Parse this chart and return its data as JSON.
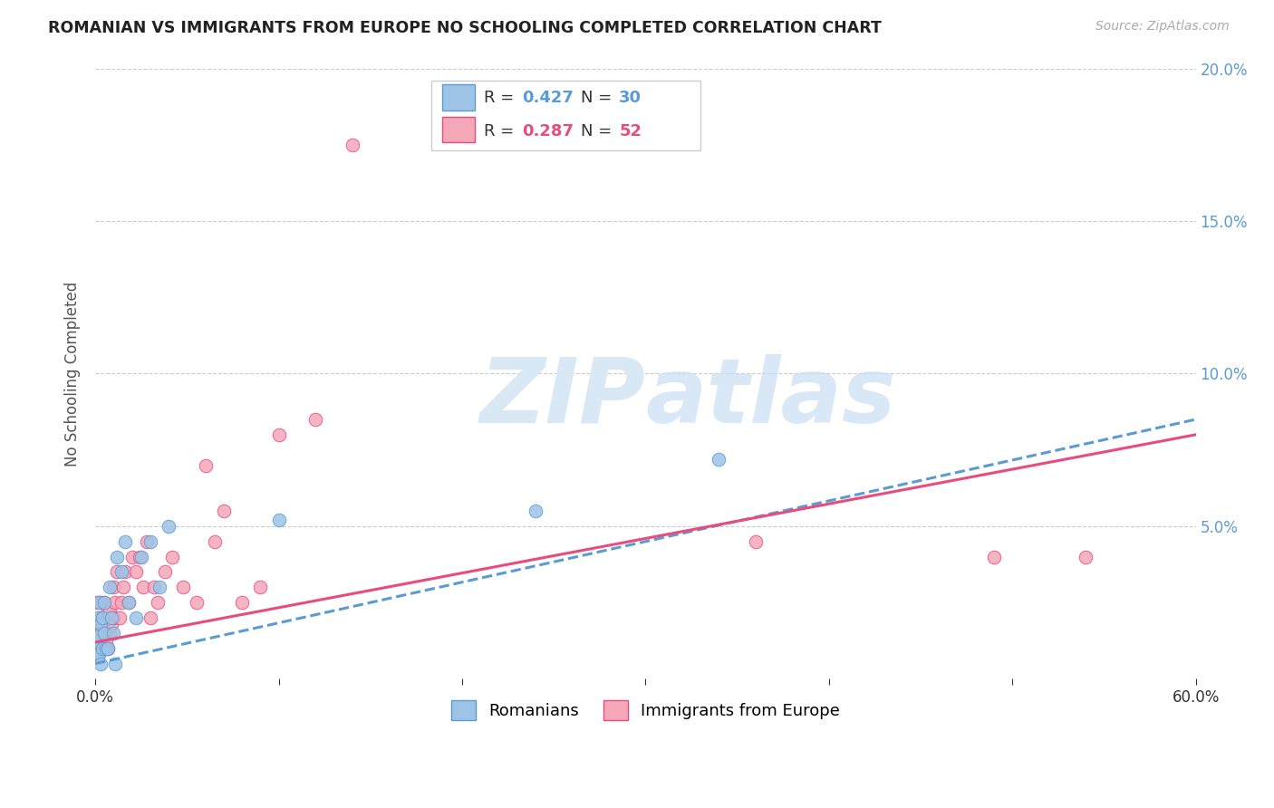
{
  "title": "ROMANIAN VS IMMIGRANTS FROM EUROPE NO SCHOOLING COMPLETED CORRELATION CHART",
  "source": "Source: ZipAtlas.com",
  "ylabel": "No Schooling Completed",
  "xlim": [
    0.0,
    0.6
  ],
  "ylim": [
    0.0,
    0.2
  ],
  "right_ytick_color": "#5b9bd5",
  "romanian_color": "#9dc3e6",
  "romanian_edge_color": "#5b9bd5",
  "immigrant_color": "#f4a7b9",
  "immigrant_edge_color": "#e84c7d",
  "trend_romanian_color": "#5b9bd5",
  "trend_immigrant_color": "#e84c7d",
  "R_romanian": 0.427,
  "N_romanian": 30,
  "R_immigrant": 0.287,
  "N_immigrant": 52,
  "watermark_zip": "ZIP",
  "watermark_atlas": "atlas",
  "background_color": "#ffffff",
  "grid_color": "#cccccc",
  "romanian_trend_start": 0.005,
  "romanian_trend_end": 0.085,
  "immigrant_trend_start": 0.012,
  "immigrant_trend_end": 0.08,
  "romanians_x": [
    0.001,
    0.001,
    0.001,
    0.002,
    0.002,
    0.002,
    0.003,
    0.003,
    0.004,
    0.004,
    0.005,
    0.005,
    0.006,
    0.007,
    0.008,
    0.009,
    0.01,
    0.011,
    0.012,
    0.014,
    0.016,
    0.018,
    0.022,
    0.025,
    0.03,
    0.035,
    0.04,
    0.1,
    0.24,
    0.34
  ],
  "romanians_y": [
    0.012,
    0.02,
    0.008,
    0.014,
    0.025,
    0.008,
    0.005,
    0.018,
    0.01,
    0.02,
    0.015,
    0.025,
    0.01,
    0.01,
    0.03,
    0.02,
    0.015,
    0.005,
    0.04,
    0.035,
    0.045,
    0.025,
    0.02,
    0.04,
    0.045,
    0.03,
    0.05,
    0.052,
    0.055,
    0.072
  ],
  "immigrants_x": [
    0.001,
    0.001,
    0.001,
    0.002,
    0.002,
    0.002,
    0.003,
    0.003,
    0.003,
    0.004,
    0.004,
    0.005,
    0.005,
    0.006,
    0.006,
    0.007,
    0.007,
    0.008,
    0.008,
    0.009,
    0.01,
    0.01,
    0.011,
    0.012,
    0.013,
    0.014,
    0.015,
    0.016,
    0.018,
    0.02,
    0.022,
    0.024,
    0.026,
    0.028,
    0.03,
    0.032,
    0.034,
    0.038,
    0.042,
    0.048,
    0.055,
    0.06,
    0.065,
    0.07,
    0.08,
    0.09,
    0.1,
    0.12,
    0.14,
    0.36,
    0.49,
    0.54
  ],
  "immigrants_y": [
    0.01,
    0.018,
    0.025,
    0.012,
    0.02,
    0.008,
    0.015,
    0.02,
    0.025,
    0.01,
    0.018,
    0.015,
    0.025,
    0.012,
    0.02,
    0.01,
    0.022,
    0.015,
    0.022,
    0.018,
    0.02,
    0.03,
    0.025,
    0.035,
    0.02,
    0.025,
    0.03,
    0.035,
    0.025,
    0.04,
    0.035,
    0.04,
    0.03,
    0.045,
    0.02,
    0.03,
    0.025,
    0.035,
    0.04,
    0.03,
    0.025,
    0.07,
    0.045,
    0.055,
    0.025,
    0.03,
    0.08,
    0.085,
    0.175,
    0.045,
    0.04,
    0.04
  ]
}
